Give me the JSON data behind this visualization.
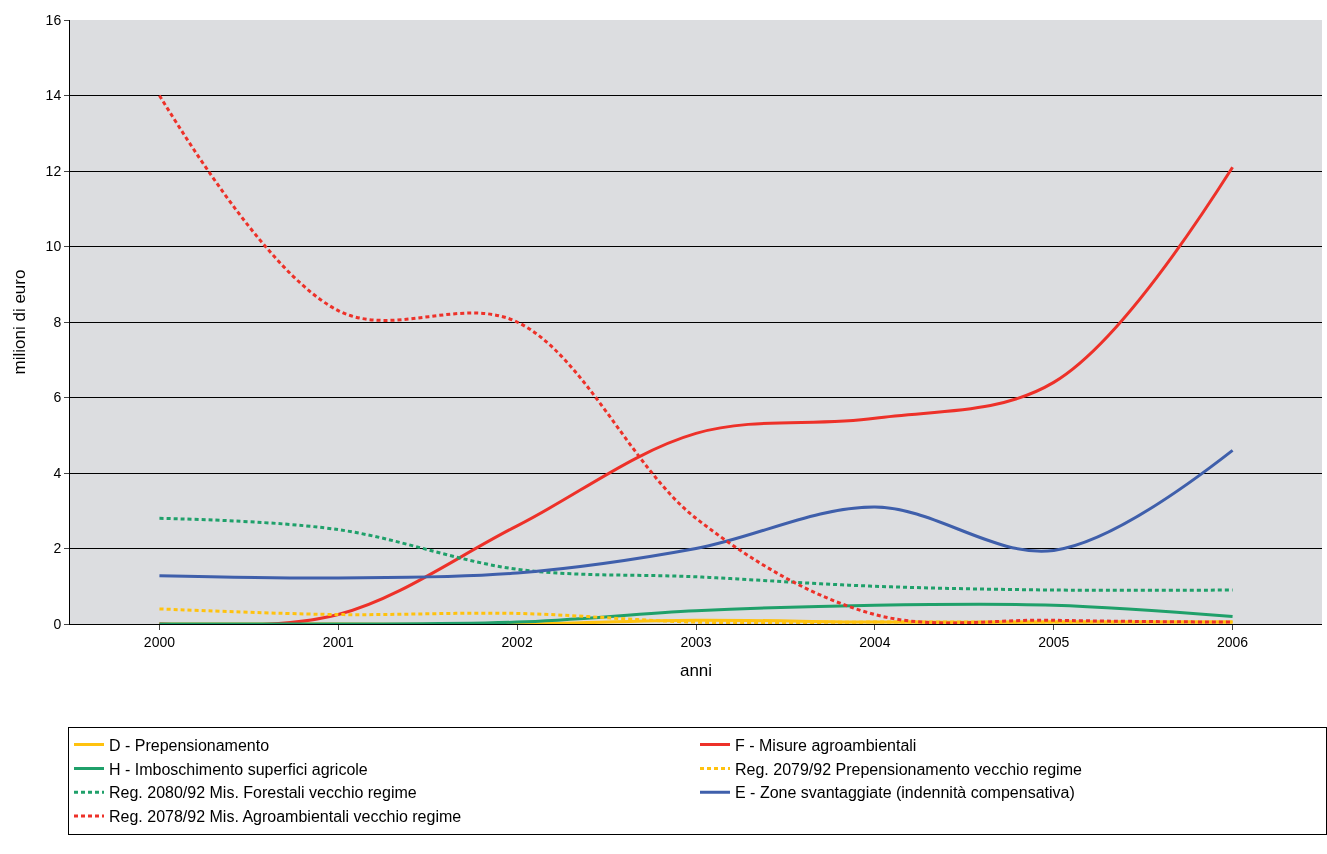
{
  "chart_data": {
    "type": "line",
    "xlabel": "anni",
    "ylabel": "milioni di euro",
    "categories": [
      "2000",
      "2001",
      "2002",
      "2003",
      "2004",
      "2005",
      "2006"
    ],
    "ylim": [
      0,
      16
    ],
    "yticks": [
      0,
      2,
      4,
      6,
      8,
      10,
      12,
      14,
      16
    ],
    "grid": "y",
    "legend": "bottom",
    "marker": "none",
    "series": [
      {
        "name": "D - Prepensionamento",
        "color": "#ffc20e",
        "line_style": "solid",
        "values": [
          0,
          0,
          0,
          0.1,
          0.05,
          0.05,
          0.05
        ]
      },
      {
        "name": "F - Misure agroambientali",
        "color": "#ed3129",
        "line_style": "solid",
        "values": [
          0,
          0.25,
          2.6,
          5.05,
          5.45,
          6.4,
          12.1
        ]
      },
      {
        "name": "H - Imboschimento superfici agricole",
        "color": "#1fa06a",
        "line_style": "solid",
        "values": [
          0,
          0,
          0.05,
          0.35,
          0.5,
          0.5,
          0.2
        ]
      },
      {
        "name": "Reg. 2079/92 Prepensionamento vecchio regime",
        "color": "#ffc20e",
        "line_style": "dashed",
        "values": [
          0.4,
          0.25,
          0.28,
          0.05,
          0.05,
          0.05,
          0.05
        ]
      },
      {
        "name": "Reg. 2080/92 Mis. Forestali vecchio regime",
        "color": "#1fa06a",
        "line_style": "dashed",
        "values": [
          2.8,
          2.5,
          1.45,
          1.25,
          1.0,
          0.9,
          0.9
        ]
      },
      {
        "name": "E - Zone svantaggiate (indennità compensativa)",
        "color": "#3f5fab",
        "line_style": "solid",
        "values": [
          1.28,
          1.22,
          1.35,
          2.0,
          3.1,
          1.95,
          4.6
        ]
      },
      {
        "name": "Reg. 2078/92 Mis. Agroambientali vecchio regime",
        "color": "#ed3129",
        "line_style": "dashed",
        "values": [
          14.0,
          8.3,
          8.0,
          2.8,
          0.25,
          0.1,
          0.05
        ]
      }
    ]
  }
}
